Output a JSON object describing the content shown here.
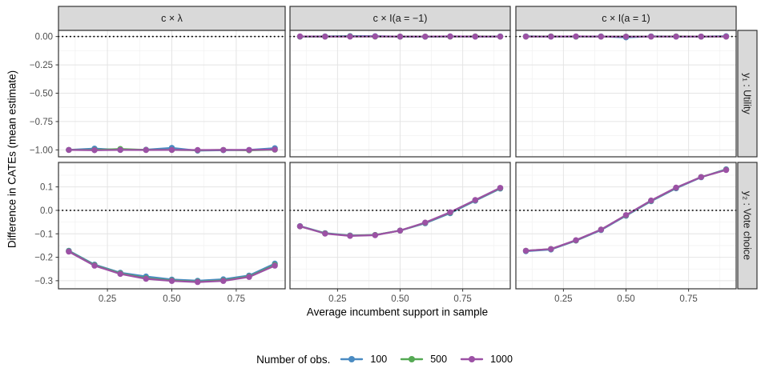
{
  "figure": {
    "ylabel": "Difference in CATEs (mean estimate)",
    "xlabel": "Average incumbent support in sample",
    "legend_title": "Number of obs."
  },
  "colors": {
    "strip_bg": "#d9d9d9",
    "strip_border": "#333333",
    "strip_text": "#1a1a1a",
    "panel_border": "#333333",
    "grid_major": "#e4e4e4",
    "grid_minor": "#f2f2f2",
    "tick_mark": "#333333",
    "tick_label": "#4d4d4d",
    "reference_line": "#000000",
    "series_100": "#4a8bc2",
    "series_500": "#55a954",
    "series_1000": "#9c51a5"
  },
  "chart_data": {
    "type": "line",
    "title": "",
    "xlabel": "Average incumbent support in sample",
    "ylabel": "Difference in CATEs (mean estimate)",
    "legend_title": "Number of obs.",
    "legend_position": "bottom",
    "facet_columns": [
      "c × λ",
      "c × I(a = −1)",
      "c × I(a = 1)"
    ],
    "facet_rows": [
      "y₁ : Utility",
      "y₂ : Vote choice"
    ],
    "x": [
      0.1,
      0.2,
      0.3,
      0.4,
      0.5,
      0.6,
      0.7,
      0.8,
      0.9
    ],
    "x_domain": [
      0.06,
      0.94
    ],
    "x_ticks": [
      0.25,
      0.5,
      0.75
    ],
    "x_tick_labels": [
      "0.25",
      "0.50",
      "0.75"
    ],
    "x_minor": [
      0.125,
      0.375,
      0.625,
      0.875
    ],
    "reference_line_y": 0,
    "rows": [
      {
        "label": "y₁ : Utility",
        "y_domain": [
          -1.061,
          0.054
        ],
        "y_ticks": [
          0,
          -0.25,
          -0.5,
          -0.75,
          -1
        ],
        "y_tick_labels": [
          "0.00",
          "−0.25",
          "−0.50",
          "−0.75",
          "−1.00"
        ],
        "grid_major": [
          0,
          -0.25,
          -0.5,
          -0.75,
          -1
        ],
        "grid_minor": [
          -0.125,
          -0.375,
          -0.625,
          -0.875
        ]
      },
      {
        "label": "y₂ : Vote choice",
        "y_domain": [
          -0.3345,
          0.2045
        ],
        "y_ticks": [
          0.1,
          0,
          -0.1,
          -0.2,
          -0.3
        ],
        "y_tick_labels": [
          "0.1",
          "0.0",
          "−0.1",
          "−0.2",
          "−0.3"
        ],
        "grid_major": [
          0.2,
          0.1,
          0,
          -0.1,
          -0.2,
          -0.3
        ],
        "grid_minor": [
          0.15,
          0.05,
          -0.05,
          -0.15,
          -0.25
        ]
      }
    ],
    "series": [
      {
        "name": "100",
        "color": "#4a8bc2"
      },
      {
        "name": "500",
        "color": "#55a954"
      },
      {
        "name": "1000",
        "color": "#9c51a5"
      }
    ],
    "panels": [
      {
        "row": 0,
        "col": 0,
        "values": {
          "100": [
            -1.0,
            -0.988,
            -1.0,
            -0.998,
            -0.982,
            -1.007,
            -1.003,
            -1.0,
            -0.985
          ],
          "500": [
            -1.0,
            -1.0,
            -0.992,
            -1.0,
            -1.0,
            -1.003,
            -1.0,
            -1.004,
            -0.998
          ],
          "1000": [
            -1.0,
            -1.003,
            -1.0,
            -1.001,
            -1.0,
            -1.001,
            -1.0,
            -1.0,
            -0.997
          ]
        }
      },
      {
        "row": 0,
        "col": 1,
        "values": {
          "100": [
            0.0,
            0.001,
            0.004,
            0.003,
            0.0,
            -0.002,
            0.001,
            0.0,
            0.001
          ],
          "500": [
            0.0,
            0.0,
            0.001,
            0.0,
            0.0,
            0.0,
            0.0,
            0.001,
            0.0
          ],
          "1000": [
            0.001,
            0.0,
            0.0,
            0.001,
            0.0,
            0.0,
            0.001,
            0.0,
            0.0
          ]
        }
      },
      {
        "row": 0,
        "col": 2,
        "values": {
          "100": [
            0.002,
            0.0,
            0.0,
            0.001,
            -0.008,
            0.002,
            0.0,
            0.0,
            0.003
          ],
          "500": [
            0.0,
            0.001,
            0.0,
            0.0,
            0.0,
            0.0,
            0.001,
            0.0,
            0.0
          ],
          "1000": [
            0.0,
            0.0,
            0.001,
            0.0,
            -0.001,
            0.0,
            0.0,
            0.0,
            0.0
          ]
        }
      },
      {
        "row": 1,
        "col": 0,
        "values": {
          "100": [
            -0.172,
            -0.231,
            -0.266,
            -0.282,
            -0.295,
            -0.3,
            -0.294,
            -0.278,
            -0.227
          ],
          "500": [
            -0.174,
            -0.234,
            -0.269,
            -0.289,
            -0.299,
            -0.304,
            -0.299,
            -0.282,
            -0.233
          ],
          "1000": [
            -0.176,
            -0.236,
            -0.271,
            -0.292,
            -0.301,
            -0.306,
            -0.301,
            -0.284,
            -0.236
          ]
        }
      },
      {
        "row": 1,
        "col": 1,
        "values": {
          "100": [
            -0.067,
            -0.097,
            -0.107,
            -0.105,
            -0.086,
            -0.055,
            -0.012,
            0.041,
            0.093
          ],
          "500": [
            -0.068,
            -0.098,
            -0.108,
            -0.105,
            -0.086,
            -0.053,
            -0.009,
            0.043,
            0.095
          ],
          "1000": [
            -0.068,
            -0.099,
            -0.109,
            -0.106,
            -0.086,
            -0.052,
            -0.008,
            0.044,
            0.096
          ]
        }
      },
      {
        "row": 1,
        "col": 2,
        "values": {
          "100": [
            -0.174,
            -0.167,
            -0.129,
            -0.084,
            -0.023,
            0.039,
            0.094,
            0.141,
            0.175
          ],
          "500": [
            -0.172,
            -0.165,
            -0.128,
            -0.082,
            -0.021,
            0.041,
            0.096,
            0.142,
            0.173
          ],
          "1000": [
            -0.172,
            -0.165,
            -0.127,
            -0.082,
            -0.02,
            0.042,
            0.097,
            0.142,
            0.172
          ]
        }
      }
    ]
  }
}
